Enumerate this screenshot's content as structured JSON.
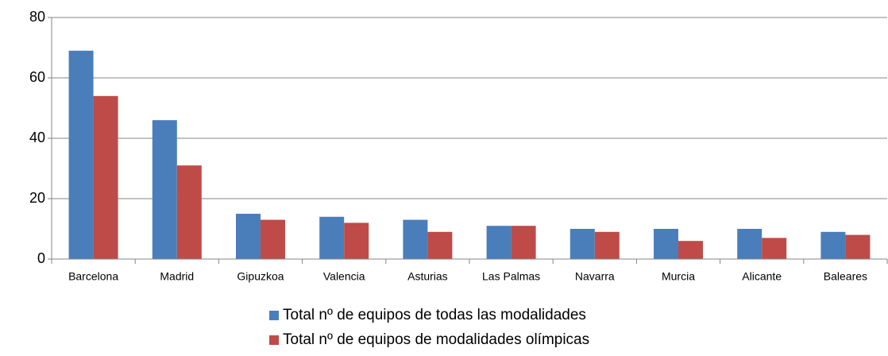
{
  "chart_data": {
    "type": "bar",
    "categories": [
      "Barcelona",
      "Madrid",
      "Gipuzkoa",
      "Valencia",
      "Asturias",
      "Las Palmas",
      "Navarra",
      "Murcia",
      "Alicante",
      "Baleares"
    ],
    "series": [
      {
        "name": "Total nº de equipos de todas las modalidades",
        "color": "#4a7ebb",
        "values": [
          69,
          46,
          15,
          14,
          13,
          11,
          10,
          10,
          10,
          9
        ]
      },
      {
        "name": "Total nº de equipos de modalidades olímpicas",
        "color": "#be4b48",
        "values": [
          54,
          31,
          13,
          12,
          9,
          11,
          9,
          6,
          7,
          8
        ]
      }
    ],
    "ylim": [
      0,
      80
    ],
    "yticks": [
      0,
      20,
      40,
      60,
      80
    ],
    "grid": true,
    "legend": "bottom"
  }
}
